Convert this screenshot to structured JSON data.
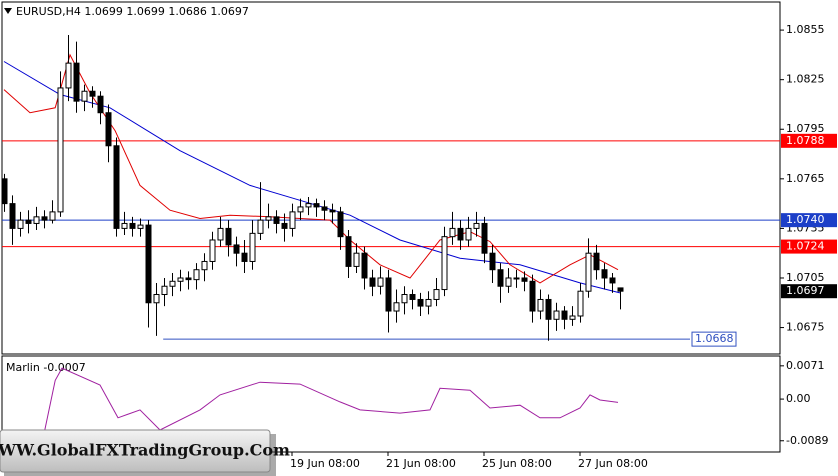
{
  "chart_data": [
    {
      "type": "candlestick",
      "title": "EURUSD,H4  1.0699 1.0699 1.0686 1.0697",
      "xlim": [
        -0.25,
        97
      ],
      "xticks": [
        {
          "value": 36,
          "label": "19 Jun 08:00"
        },
        {
          "value": 48,
          "label": "21 Jun 08:00"
        },
        {
          "value": 60,
          "label": "25 Jun 08:00"
        },
        {
          "value": 72,
          "label": "27 Jun 08:00"
        }
      ],
      "ylim": [
        1.0659,
        1.0872
      ],
      "yticks": [
        1.0855,
        1.0825,
        1.0795,
        1.0765,
        1.0735,
        1.0705,
        1.0675
      ],
      "open": [
        1.0765,
        1.075,
        1.0735,
        1.074,
        1.0738,
        1.0742,
        1.074,
        1.0745,
        1.082,
        1.0835,
        1.0812,
        1.0818,
        1.0815,
        1.0805,
        1.0785,
        1.0735,
        1.0738,
        1.0735,
        1.0737,
        1.069,
        1.0695,
        1.07,
        1.0703,
        1.0705,
        1.0704,
        1.071,
        1.0715,
        1.0728,
        1.0735,
        1.0725,
        1.072,
        1.0715,
        1.0732,
        1.074,
        1.0742,
        1.0738,
        1.0735,
        1.0745,
        1.0748,
        1.075,
        1.0748,
        1.0746,
        1.0745,
        1.073,
        1.0712,
        1.072,
        1.0705,
        1.07,
        1.0705,
        1.0685,
        1.069,
        1.0695,
        1.0692,
        1.0688,
        1.0692,
        1.0698,
        1.073,
        1.0735,
        1.0728,
        1.0735,
        1.0738,
        1.072,
        1.071,
        1.07,
        1.0705,
        1.0705,
        1.0703,
        1.0685,
        1.0692,
        1.068,
        1.0685,
        1.068,
        1.0682,
        1.0697,
        1.072,
        1.071,
        1.0705,
        1.0699
      ],
      "high": [
        1.0768,
        1.0755,
        1.0745,
        1.0746,
        1.0748,
        1.0746,
        1.0752,
        1.083,
        1.0852,
        1.0848,
        1.0822,
        1.0821,
        1.0818,
        1.081,
        1.079,
        1.0745,
        1.0742,
        1.0741,
        1.074,
        1.0702,
        1.0705,
        1.0708,
        1.071,
        1.0709,
        1.0714,
        1.072,
        1.0733,
        1.0742,
        1.074,
        1.073,
        1.0728,
        1.074,
        1.0763,
        1.075,
        1.0746,
        1.0744,
        1.075,
        1.0753,
        1.0754,
        1.0753,
        1.0752,
        1.075,
        1.0748,
        1.0734,
        1.0726,
        1.0724,
        1.071,
        1.0712,
        1.071,
        1.0698,
        1.07,
        1.0698,
        1.0696,
        1.0697,
        1.0705,
        1.0736,
        1.0745,
        1.074,
        1.0742,
        1.0745,
        1.0742,
        1.0725,
        1.0714,
        1.0711,
        1.071,
        1.0709,
        1.0707,
        1.0698,
        1.0695,
        1.069,
        1.0688,
        1.0688,
        1.0702,
        1.0729,
        1.0725,
        1.0714,
        1.0708,
        1.0699
      ],
      "low": [
        1.0745,
        1.0725,
        1.073,
        1.0732,
        1.0734,
        1.0735,
        1.0738,
        1.0742,
        1.0812,
        1.0805,
        1.0806,
        1.0808,
        1.0798,
        1.0775,
        1.073,
        1.0731,
        1.073,
        1.073,
        1.0675,
        1.067,
        1.0688,
        1.0694,
        1.0697,
        1.0698,
        1.0698,
        1.0703,
        1.071,
        1.0724,
        1.0718,
        1.0712,
        1.0708,
        1.071,
        1.0728,
        1.0735,
        1.0732,
        1.0727,
        1.073,
        1.074,
        1.0743,
        1.0742,
        1.074,
        1.0738,
        1.0722,
        1.0705,
        1.0708,
        1.0698,
        1.0694,
        1.0695,
        1.0672,
        1.0678,
        1.0683,
        1.0686,
        1.0682,
        1.0683,
        1.0688,
        1.0694,
        1.0725,
        1.0722,
        1.0724,
        1.073,
        1.0714,
        1.0702,
        1.069,
        1.0696,
        1.0699,
        1.0697,
        1.0678,
        1.068,
        1.0667,
        1.0673,
        1.0674,
        1.0676,
        1.0678,
        1.0693,
        1.0704,
        1.0698,
        1.0696,
        1.0686
      ],
      "close": [
        1.075,
        1.0735,
        1.074,
        1.0738,
        1.0742,
        1.074,
        1.0745,
        1.082,
        1.0835,
        1.0812,
        1.0818,
        1.0815,
        1.0805,
        1.0785,
        1.0735,
        1.0738,
        1.0735,
        1.0737,
        1.069,
        1.0695,
        1.07,
        1.0703,
        1.0705,
        1.0704,
        1.071,
        1.0715,
        1.0728,
        1.0735,
        1.0725,
        1.072,
        1.0715,
        1.0732,
        1.074,
        1.0742,
        1.0738,
        1.0735,
        1.0745,
        1.0748,
        1.075,
        1.0748,
        1.0746,
        1.0745,
        1.073,
        1.0712,
        1.072,
        1.0705,
        1.07,
        1.0705,
        1.0685,
        1.069,
        1.0695,
        1.0692,
        1.0688,
        1.0692,
        1.0698,
        1.073,
        1.0735,
        1.0728,
        1.0735,
        1.0738,
        1.072,
        1.071,
        1.07,
        1.0705,
        1.0705,
        1.0703,
        1.0685,
        1.0692,
        1.068,
        1.0685,
        1.068,
        1.0682,
        1.0697,
        1.072,
        1.071,
        1.0705,
        1.0702,
        1.0697
      ],
      "series": [
        {
          "color": "#0000d0",
          "x": [
            0,
            7,
            13.25,
            22,
            30.75,
            37,
            43.25,
            49.5,
            57,
            64.5,
            72,
            77
          ],
          "values": [
            1.0836,
            1.0816,
            1.0808,
            1.0782,
            1.0761,
            1.0752,
            1.0743,
            1.0728,
            1.0717,
            1.0713,
            1.0702,
            1.0696
          ]
        },
        {
          "color": "#e00000",
          "x": [
            0,
            3.25,
            6.4,
            8.25,
            10.75,
            13.9,
            17,
            20.75,
            24.5,
            28.25,
            33.25,
            37,
            40.75,
            43.25,
            47,
            50.75,
            54.5,
            58.25,
            60.75,
            63.25,
            67,
            70.75,
            73.25,
            76.75
          ],
          "values": [
            1.0819,
            1.0805,
            1.0808,
            1.084,
            1.0817,
            1.0794,
            1.0761,
            1.0746,
            1.0741,
            1.0743,
            1.0742,
            1.0741,
            1.074,
            1.0728,
            1.0713,
            1.0705,
            1.0728,
            1.0733,
            1.0727,
            1.0713,
            1.0702,
            1.0713,
            1.0719,
            1.071
          ]
        }
      ],
      "levels": [
        {
          "value": 1.0788,
          "label": "1.0788",
          "color": "#ff0000"
        },
        {
          "value": 1.074,
          "label": "1.0740",
          "color": "#1c3fc8"
        },
        {
          "value": 1.0724,
          "label": "1.0724",
          "color": "#ff0000"
        }
      ],
      "bid": 1.0697,
      "support": {
        "value": 1.0668,
        "x": [
          19.9,
          85.75
        ],
        "color": "#3050c0"
      }
    },
    {
      "type": "line",
      "title": "Marlin -0.0007",
      "xlim": [
        -0.25,
        97
      ],
      "ylim": [
        -0.0113,
        0.0092
      ],
      "yticks": [
        0.0071,
        {
          "value": 0,
          "label": "0.00"
        },
        -0.0089
      ],
      "series": [
        {
          "color": "#a020a0",
          "x": [
            5.1,
            6.4,
            7.25,
            12,
            14.25,
            17,
            19.5,
            24.5,
            27,
            32,
            37,
            42,
            44.5,
            49.5,
            53.25,
            54.5,
            58.25,
            60.75,
            64.5,
            67,
            69.5,
            72,
            73.25,
            74.5,
            76.75
          ],
          "values": [
            -0.0066,
            0.004,
            0.0066,
            0.003,
            -0.004,
            -0.0023,
            -0.0066,
            -0.0023,
            0.0009,
            0.0036,
            0.0032,
            -0.0006,
            -0.0023,
            -0.003,
            -0.0023,
            0.0023,
            0.0019,
            -0.0019,
            -0.0013,
            -0.004,
            -0.004,
            -0.0019,
            0.0009,
            -0.0002,
            -0.0007
          ]
        }
      ]
    }
  ],
  "watermark": "WWW.GlobalFXTradingGroup.Com"
}
